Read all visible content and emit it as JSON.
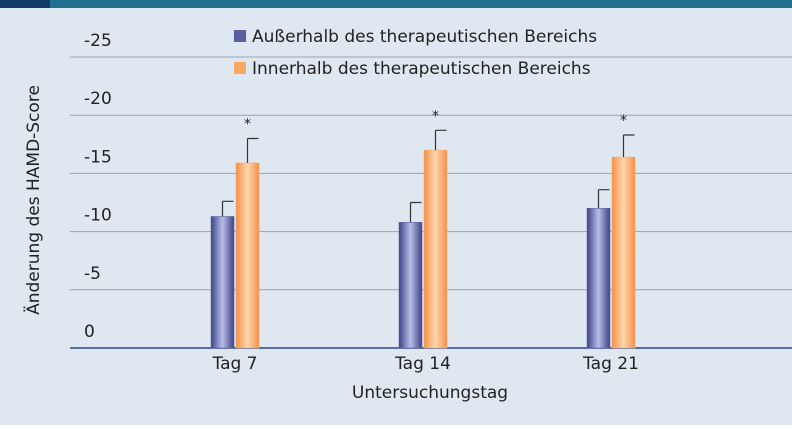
{
  "chart_data": {
    "type": "bar",
    "categories": [
      "Tag 7",
      "Tag 14",
      "Tag 21"
    ],
    "series": [
      {
        "name": "Außerhalb des therapeutischen Bereichs",
        "color": "#5a5fa3",
        "values": [
          -11.3,
          -10.8,
          -12.0
        ],
        "errors": [
          1.3,
          1.7,
          1.6
        ]
      },
      {
        "name": "Innerhalb des therapeutischen Bereichs",
        "color": "#f9a865",
        "values": [
          -15.9,
          -17.0,
          -16.4
        ],
        "errors": [
          2.1,
          1.7,
          1.9
        ]
      }
    ],
    "annotations": [
      "*",
      "*",
      "*"
    ],
    "ylabel": "Änderung des HAMD-Score",
    "xlabel": "Untersuchungstag",
    "ylim": [
      0,
      -25
    ],
    "yticks": [
      -25,
      -20,
      -15,
      -10,
      -5,
      0
    ],
    "grid": true
  }
}
